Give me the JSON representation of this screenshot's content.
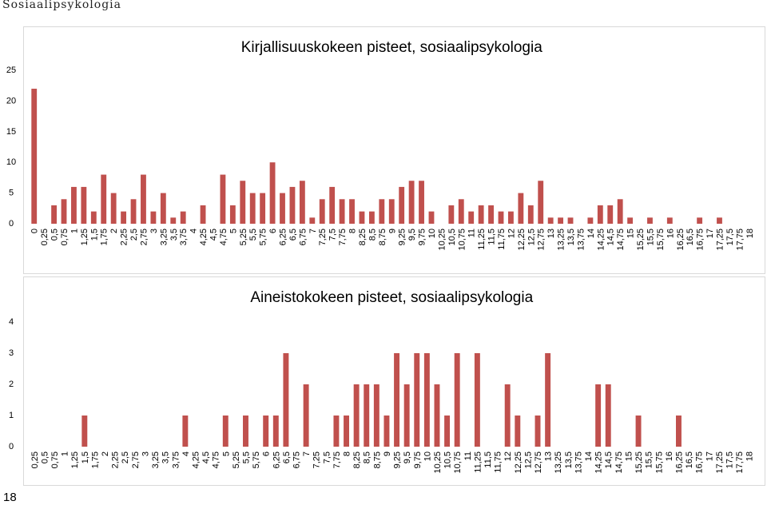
{
  "page": {
    "header": "Sosiaalipsykologia",
    "page_number": "18"
  },
  "chart_data": [
    {
      "type": "bar",
      "title": "Kirjallisuuskokeen pisteet, sosiaalipsykologia",
      "xlabel": "",
      "ylabel": "",
      "ylim": [
        0,
        25
      ],
      "yticks": [
        "0",
        "5",
        "10",
        "15",
        "20",
        "25"
      ],
      "grid": false,
      "bar_color": "#c0504d",
      "categories": [
        "0",
        "0,25",
        "0,5",
        "0,75",
        "1",
        "1,25",
        "1,5",
        "1,75",
        "2",
        "2,25",
        "2,5",
        "2,75",
        "3",
        "3,25",
        "3,5",
        "3,75",
        "4",
        "4,25",
        "4,5",
        "4,75",
        "5",
        "5,25",
        "5,5",
        "5,75",
        "6",
        "6,25",
        "6,5",
        "6,75",
        "7",
        "7,25",
        "7,5",
        "7,75",
        "8",
        "8,25",
        "8,5",
        "8,75",
        "9",
        "9,25",
        "9,5",
        "9,75",
        "10",
        "10,25",
        "10,5",
        "10,75",
        "11",
        "11,25",
        "11,5",
        "11,75",
        "12",
        "12,25",
        "12,5",
        "12,75",
        "13",
        "13,25",
        "13,5",
        "13,75",
        "14",
        "14,25",
        "14,5",
        "14,75",
        "15",
        "15,25",
        "15,5",
        "15,75",
        "16",
        "16,25",
        "16,5",
        "16,75",
        "17",
        "17,25",
        "17,5",
        "17,75",
        "18"
      ],
      "values": [
        22,
        0,
        3,
        4,
        6,
        6,
        2,
        8,
        5,
        2,
        4,
        8,
        2,
        5,
        1,
        2,
        0,
        3,
        0,
        8,
        3,
        7,
        5,
        5,
        10,
        5,
        6,
        7,
        1,
        4,
        6,
        4,
        4,
        2,
        2,
        4,
        4,
        6,
        7,
        7,
        2,
        0,
        3,
        4,
        2,
        3,
        3,
        2,
        2,
        5,
        3,
        7,
        1,
        1,
        1,
        0,
        1,
        3,
        3,
        4,
        1,
        0,
        1,
        0,
        1,
        0,
        0,
        1,
        0,
        1,
        0,
        0,
        0
      ]
    },
    {
      "type": "bar",
      "title": "Aineistokokeen pisteet, sosiaalipsykologia",
      "xlabel": "",
      "ylabel": "",
      "ylim": [
        0,
        4
      ],
      "yticks": [
        "0",
        "1",
        "2",
        "3",
        "4"
      ],
      "grid": false,
      "bar_color": "#c0504d",
      "categories": [
        "0,25",
        "0,5",
        "0,75",
        "1",
        "1,25",
        "1,5",
        "1,75",
        "2",
        "2,25",
        "2,5",
        "2,75",
        "3",
        "3,25",
        "3,5",
        "3,75",
        "4",
        "4,25",
        "4,5",
        "4,75",
        "5",
        "5,25",
        "5,5",
        "5,75",
        "6",
        "6,25",
        "6,5",
        "6,75",
        "7",
        "7,25",
        "7,5",
        "7,75",
        "8",
        "8,25",
        "8,5",
        "8,75",
        "9",
        "9,25",
        "9,5",
        "9,75",
        "10",
        "10,25",
        "10,5",
        "10,75",
        "11",
        "11,25",
        "11,5",
        "11,75",
        "12",
        "12,25",
        "12,5",
        "12,75",
        "13",
        "13,25",
        "13,5",
        "13,75",
        "14",
        "14,25",
        "14,5",
        "14,75",
        "15",
        "15,25",
        "15,5",
        "15,75",
        "16",
        "16,25",
        "16,5",
        "16,75",
        "17",
        "17,25",
        "17,5",
        "17,75",
        "18"
      ],
      "values": [
        0,
        0,
        0,
        0,
        0,
        1,
        0,
        0,
        0,
        0,
        0,
        0,
        0,
        0,
        0,
        1,
        0,
        0,
        0,
        1,
        0,
        1,
        0,
        1,
        1,
        3,
        0,
        2,
        0,
        0,
        1,
        1,
        2,
        2,
        2,
        1,
        3,
        2,
        3,
        3,
        2,
        1,
        3,
        0,
        3,
        0,
        0,
        2,
        1,
        0,
        1,
        3,
        0,
        0,
        0,
        0,
        2,
        2,
        0,
        0,
        1,
        0,
        0,
        0,
        1,
        0,
        0,
        0,
        0,
        0,
        0,
        0
      ]
    }
  ]
}
